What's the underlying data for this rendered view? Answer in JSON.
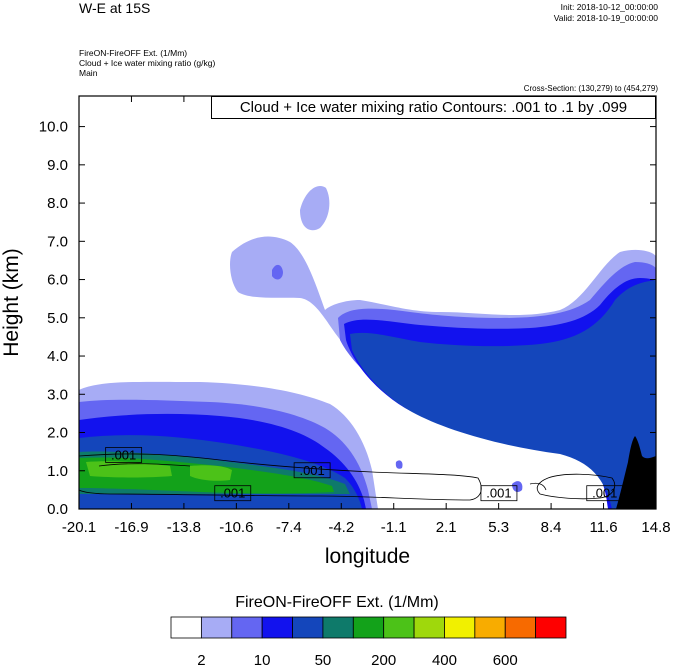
{
  "header": {
    "title": "W-E at 15S",
    "init": "Init: 2018-10-12_00:00:00",
    "valid": "Valid: 2018-10-19_00:00:00",
    "field_name": "FireON-FireOFF Ext.   (1/Mm)",
    "contour_name": "Cloud + Ice water mixing ratio   (g/kg)",
    "domain": "Main",
    "cross_section": "Cross-Section: (130,279) to (454,279)"
  },
  "contour_info": "Cloud + Ice water mixing ratio Contours: .001 to .1 by .099",
  "colorbar": {
    "title": "FireON-FireOFF Ext.  (1/Mm)",
    "colors": [
      "#ffffff",
      "#a7acf5",
      "#6466f2",
      "#1212ee",
      "#1446bb",
      "#0e7a6a",
      "#13a21a",
      "#4cc218",
      "#9fd80c",
      "#f1f000",
      "#f8ac00",
      "#f76a00",
      "#fe0000"
    ],
    "labels": [
      "2",
      "10",
      "50",
      "200",
      "400",
      "600"
    ]
  },
  "chart_data": {
    "type": "heatmap",
    "xlabel": "longitude",
    "ylabel": "Height (km)",
    "xlim": [
      -20.1,
      14.8
    ],
    "ylim": [
      0.0,
      10.8
    ],
    "x_ticks": [
      "-20.1",
      "-16.9",
      "-13.8",
      "-10.6",
      "-7.4",
      "-4.2",
      "-1.1",
      "2.1",
      "5.3",
      "8.4",
      "11.6",
      "14.8"
    ],
    "y_ticks": [
      "0.0",
      "1.0",
      "2.0",
      "3.0",
      "4.0",
      "5.0",
      "6.0",
      "7.0",
      "8.0",
      "9.0",
      "10.0"
    ],
    "contour_labels": [
      {
        "text": ".001",
        "x": -17.4,
        "y": 1.4
      },
      {
        "text": ".001",
        "x": -6.0,
        "y": 1.0
      },
      {
        "text": ".001",
        "x": -10.8,
        "y": 0.4
      },
      {
        "text": ".001",
        "x": 5.3,
        "y": 0.4
      },
      {
        "text": ".001",
        "x": 11.7,
        "y": 0.4
      }
    ]
  }
}
